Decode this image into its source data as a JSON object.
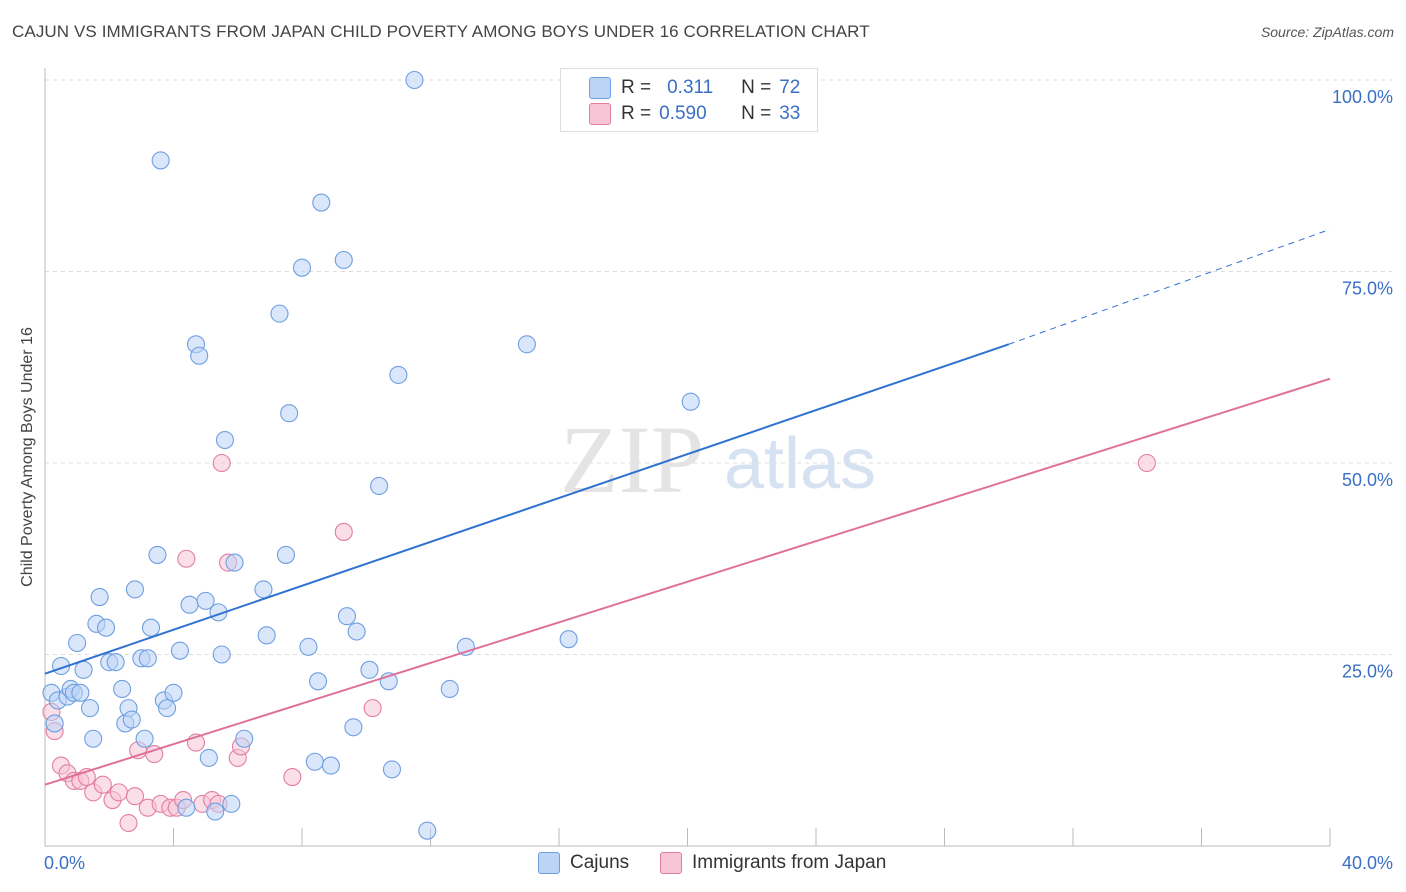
{
  "header": {
    "title": "CAJUN VS IMMIGRANTS FROM JAPAN CHILD POVERTY AMONG BOYS UNDER 16 CORRELATION CHART",
    "source": "Source: ZipAtlas.com"
  },
  "watermark": {
    "zip": "ZIP",
    "atlas": "atlas"
  },
  "legend": {
    "r_label": "R =",
    "n_label": "N =",
    "rows": [
      {
        "r": "0.311",
        "n": "72",
        "color": "#6f9fe0",
        "fill": "#bcd4f5"
      },
      {
        "r": "0.590",
        "n": "33",
        "color": "#e27ea3",
        "fill": "#f8c5d6"
      }
    ]
  },
  "bottom_legend": {
    "series_a": "Cajuns",
    "series_b": "Immigrants from Japan"
  },
  "chart_data": {
    "type": "scatter",
    "title": "CAJUN VS IMMIGRANTS FROM JAPAN CHILD POVERTY AMONG BOYS UNDER 16 CORRELATION CHART",
    "xlabel": "",
    "ylabel": "Child Poverty Among Boys Under 16",
    "xlim": [
      0,
      40
    ],
    "ylim": [
      0,
      100
    ],
    "x_tick_labels": [
      "0.0%",
      "40.0%"
    ],
    "y_tick_labels": [
      "25.0%",
      "50.0%",
      "75.0%",
      "100.0%"
    ],
    "y_ticks": [
      25,
      50,
      75,
      100
    ],
    "grid": true,
    "legend_position": "top-center",
    "series": [
      {
        "name": "Cajuns",
        "color": "#6f9fe0",
        "fill": "#bcd4f5",
        "trend": {
          "x": [
            0,
            30
          ],
          "y": [
            22.5,
            65.5
          ],
          "extend_to_x": 40,
          "extend_y": 80.5
        },
        "points": [
          [
            0.2,
            20
          ],
          [
            0.4,
            19
          ],
          [
            0.5,
            23.5
          ],
          [
            0.7,
            19.5
          ],
          [
            0.8,
            20.5
          ],
          [
            0.9,
            20
          ],
          [
            1.0,
            26.5
          ],
          [
            1.2,
            23
          ],
          [
            1.4,
            18
          ],
          [
            1.5,
            14
          ],
          [
            1.6,
            29
          ],
          [
            1.7,
            32.5
          ],
          [
            1.9,
            28.5
          ],
          [
            2.0,
            24
          ],
          [
            2.2,
            24
          ],
          [
            2.4,
            20.5
          ],
          [
            2.5,
            16
          ],
          [
            2.6,
            18
          ],
          [
            2.7,
            16.5
          ],
          [
            2.8,
            33.5
          ],
          [
            3.0,
            24.5
          ],
          [
            3.1,
            14
          ],
          [
            3.2,
            24.5
          ],
          [
            3.3,
            28.5
          ],
          [
            3.5,
            38
          ],
          [
            3.6,
            89.5
          ],
          [
            3.7,
            19
          ],
          [
            3.8,
            18
          ],
          [
            4.0,
            20
          ],
          [
            4.2,
            25.5
          ],
          [
            4.4,
            5
          ],
          [
            4.5,
            31.5
          ],
          [
            4.7,
            65.5
          ],
          [
            4.8,
            64
          ],
          [
            5.0,
            32
          ],
          [
            5.1,
            11.5
          ],
          [
            5.3,
            4.5
          ],
          [
            5.4,
            30.5
          ],
          [
            5.5,
            25
          ],
          [
            5.6,
            53
          ],
          [
            5.8,
            5.5
          ],
          [
            5.9,
            37
          ],
          [
            6.2,
            14
          ],
          [
            6.8,
            33.5
          ],
          [
            6.9,
            27.5
          ],
          [
            7.3,
            69.5
          ],
          [
            7.5,
            38
          ],
          [
            7.6,
            56.5
          ],
          [
            8.0,
            75.5
          ],
          [
            8.2,
            26
          ],
          [
            8.4,
            11
          ],
          [
            8.5,
            21.5
          ],
          [
            8.6,
            84
          ],
          [
            8.9,
            10.5
          ],
          [
            9.3,
            76.5
          ],
          [
            9.4,
            30
          ],
          [
            9.6,
            15.5
          ],
          [
            9.7,
            28
          ],
          [
            10.1,
            23
          ],
          [
            10.4,
            47
          ],
          [
            10.7,
            21.5
          ],
          [
            10.8,
            10
          ],
          [
            11.0,
            61.5
          ],
          [
            11.9,
            2
          ],
          [
            11.5,
            100
          ],
          [
            12.6,
            20.5
          ],
          [
            13.1,
            26
          ],
          [
            15.0,
            65.5
          ],
          [
            16.3,
            27
          ],
          [
            20.1,
            58
          ],
          [
            0.3,
            16
          ],
          [
            1.1,
            20
          ]
        ]
      },
      {
        "name": "Immigrants from Japan",
        "color": "#e27ea3",
        "fill": "#f8c5d6",
        "trend": {
          "x": [
            0,
            40
          ],
          "y": [
            8,
            61
          ]
        },
        "points": [
          [
            0.2,
            17.5
          ],
          [
            0.3,
            15
          ],
          [
            0.5,
            10.5
          ],
          [
            0.7,
            9.5
          ],
          [
            0.9,
            8.5
          ],
          [
            1.1,
            8.5
          ],
          [
            1.3,
            9
          ],
          [
            1.5,
            7
          ],
          [
            1.8,
            8
          ],
          [
            2.1,
            6
          ],
          [
            2.3,
            7
          ],
          [
            2.6,
            3
          ],
          [
            2.8,
            6.5
          ],
          [
            2.9,
            12.5
          ],
          [
            3.2,
            5
          ],
          [
            3.4,
            12
          ],
          [
            3.6,
            5.5
          ],
          [
            3.9,
            5
          ],
          [
            4.1,
            5
          ],
          [
            4.3,
            6
          ],
          [
            4.4,
            37.5
          ],
          [
            4.7,
            13.5
          ],
          [
            4.9,
            5.5
          ],
          [
            5.2,
            6
          ],
          [
            5.4,
            5.5
          ],
          [
            5.5,
            50
          ],
          [
            5.7,
            37
          ],
          [
            6.0,
            11.5
          ],
          [
            6.1,
            13
          ],
          [
            7.7,
            9
          ],
          [
            9.3,
            41
          ],
          [
            10.2,
            18
          ],
          [
            34.3,
            50
          ]
        ]
      }
    ]
  }
}
